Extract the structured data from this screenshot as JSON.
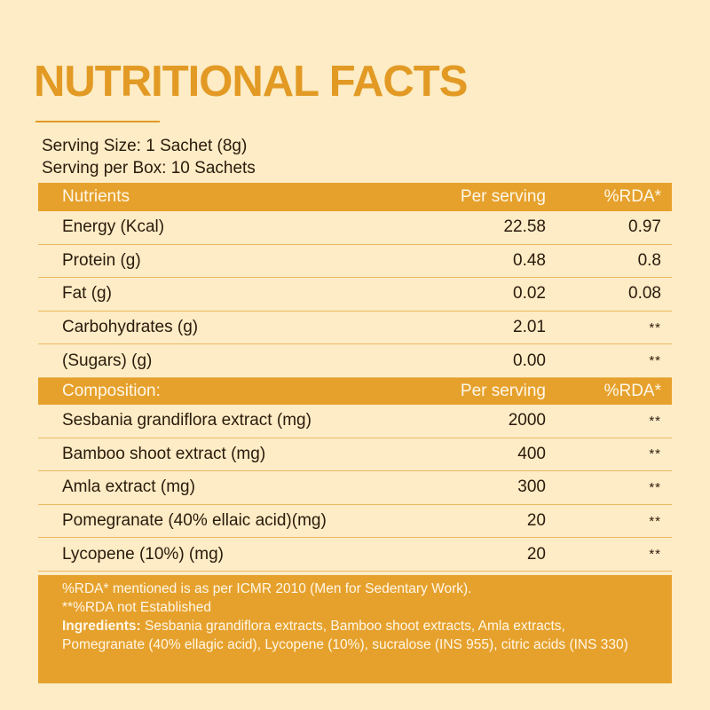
{
  "title": "NUTRITIONAL FACTS",
  "serving_size": "Serving Size: 1 Sachet (8g)",
  "serving_per_box": "Serving per Box: 10 Sachets",
  "nutrients_header": {
    "name": "Nutrients",
    "per": "Per serving",
    "rda": "%RDA*"
  },
  "nutrients": [
    {
      "name": "Energy (Kcal)",
      "per": "22.58",
      "rda": "0.97"
    },
    {
      "name": "Protein (g)",
      "per": "0.48",
      "rda": "0.8"
    },
    {
      "name": "Fat (g)",
      "per": "0.02",
      "rda": "0.08"
    },
    {
      "name": "Carbohydrates (g)",
      "per": "2.01",
      "rda": "**"
    },
    {
      "name": "(Sugars) (g)",
      "per": "0.00",
      "rda": "**"
    }
  ],
  "composition_header": {
    "name": "Composition:",
    "per": "Per serving",
    "rda": "%RDA*"
  },
  "composition": [
    {
      "name": "Sesbania grandiflora extract (mg)",
      "per": "2000",
      "rda": "**"
    },
    {
      "name": "Bamboo shoot extract (mg)",
      "per": "400",
      "rda": "**"
    },
    {
      "name": "Amla extract (mg)",
      "per": "300",
      "rda": "**"
    },
    {
      "name": "Pomegranate (40% ellaic acid)(mg)",
      "per": "20",
      "rda": "**"
    },
    {
      "name": "Lycopene (10%) (mg)",
      "per": "20",
      "rda": "**"
    }
  ],
  "notes": {
    "line1": "%RDA* mentioned is as per ICMR 2010 (Men for Sedentary Work).",
    "line2": "**%RDA not Established",
    "ingredients_label": "Ingredients:",
    "ingredients_text": " Sesbania grandiflora extracts, Bamboo shoot extracts, Amla extracts, Pomegranate (40% ellagic acid), Lycopene (10%), sucralose (INS 955), citric acids (INS 330)"
  },
  "colors": {
    "accent": "#e29a24",
    "band": "#e6a12c",
    "background": "#fdecc5"
  }
}
